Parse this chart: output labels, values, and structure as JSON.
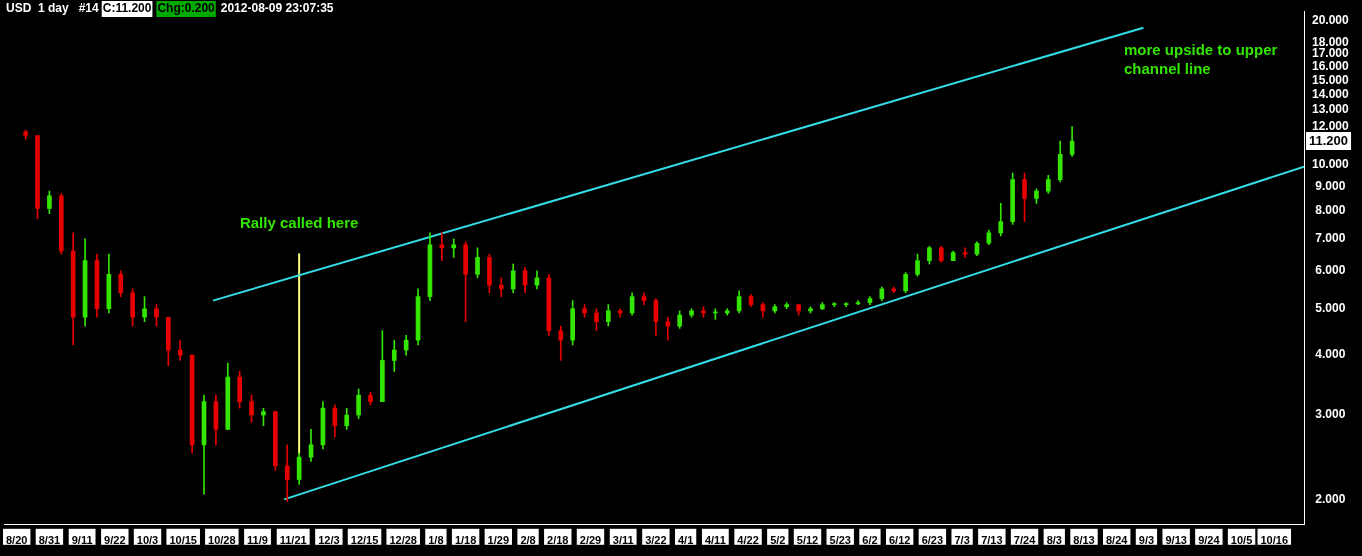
{
  "chart_data": {
    "type": "candlestick",
    "title": "USD  1 day   #14",
    "annotations": [
      "C:11.200",
      "Chg:0.200",
      "2012-08-09 23:07:35",
      "11.200",
      "Rally called here",
      "more upside to upper channel line"
    ],
    "x": [
      "2011-08-23",
      "2011-08-27",
      "2011-08-31",
      "2011-09-04",
      "2011-09-08",
      "2011-09-12",
      "2011-09-16",
      "2011-09-20",
      "2011-09-24",
      "2011-09-28",
      "2011-10-02",
      "2011-10-06",
      "2011-10-10",
      "2011-10-14",
      "2011-10-18",
      "2011-10-22",
      "2011-10-26",
      "2011-10-30",
      "2011-11-03",
      "2011-11-07",
      "2011-11-11",
      "2011-11-15",
      "2011-11-19",
      "2011-11-23",
      "2011-11-27",
      "2011-12-01",
      "2011-12-05",
      "2011-12-09",
      "2011-12-13",
      "2011-12-17",
      "2011-12-21",
      "2011-12-25",
      "2011-12-29",
      "2012-01-02",
      "2012-01-06",
      "2012-01-10",
      "2012-01-14",
      "2012-01-18",
      "2012-01-22",
      "2012-01-26",
      "2012-01-30",
      "2012-02-03",
      "2012-02-07",
      "2012-02-11",
      "2012-02-15",
      "2012-02-19",
      "2012-02-23",
      "2012-02-27",
      "2012-03-02",
      "2012-03-06",
      "2012-03-10",
      "2012-03-14",
      "2012-03-18",
      "2012-03-22",
      "2012-03-26",
      "2012-03-30",
      "2012-04-03",
      "2012-04-07",
      "2012-04-11",
      "2012-04-15",
      "2012-04-19",
      "2012-04-23",
      "2012-04-27",
      "2012-05-01",
      "2012-05-05",
      "2012-05-09",
      "2012-05-13",
      "2012-05-17",
      "2012-05-21",
      "2012-05-25",
      "2012-05-29",
      "2012-06-02",
      "2012-06-06",
      "2012-06-10",
      "2012-06-14",
      "2012-06-18",
      "2012-06-22",
      "2012-06-26",
      "2012-06-30",
      "2012-07-04",
      "2012-07-08",
      "2012-07-12",
      "2012-07-16",
      "2012-07-20",
      "2012-07-24",
      "2012-07-28",
      "2012-08-01",
      "2012-08-05",
      "2012-08-09"
    ],
    "ohlc": [
      [
        11.7,
        11.8,
        11.3,
        11.5
      ],
      [
        11.5,
        11.5,
        7.7,
        8.1
      ],
      [
        8.1,
        8.8,
        7.9,
        8.6
      ],
      [
        8.6,
        8.7,
        6.5,
        6.6
      ],
      [
        6.6,
        7.2,
        4.2,
        4.8
      ],
      [
        4.8,
        7.0,
        4.6,
        6.3
      ],
      [
        6.3,
        6.5,
        4.8,
        5.0
      ],
      [
        5.0,
        6.5,
        4.9,
        5.9
      ],
      [
        5.9,
        6.0,
        5.3,
        5.4
      ],
      [
        5.4,
        5.5,
        4.6,
        4.8
      ],
      [
        4.8,
        5.3,
        4.7,
        5.0
      ],
      [
        5.0,
        5.1,
        4.6,
        4.8
      ],
      [
        4.8,
        4.8,
        3.8,
        4.1
      ],
      [
        4.1,
        4.3,
        3.9,
        4.0
      ],
      [
        4.0,
        4.0,
        2.5,
        2.6
      ],
      [
        2.6,
        3.3,
        2.05,
        3.2
      ],
      [
        3.2,
        3.3,
        2.6,
        2.8
      ],
      [
        2.8,
        3.85,
        2.8,
        3.6
      ],
      [
        3.6,
        3.7,
        3.1,
        3.2
      ],
      [
        3.2,
        3.3,
        2.9,
        3.0
      ],
      [
        3.0,
        3.1,
        2.85,
        3.05
      ],
      [
        3.05,
        3.05,
        2.3,
        2.35
      ],
      [
        2.35,
        2.6,
        1.98,
        2.2
      ],
      [
        2.2,
        2.5,
        2.15,
        2.45
      ],
      [
        2.45,
        2.8,
        2.4,
        2.6
      ],
      [
        2.6,
        3.2,
        2.55,
        3.1
      ],
      [
        3.1,
        3.15,
        2.7,
        2.85
      ],
      [
        2.85,
        3.1,
        2.8,
        3.0
      ],
      [
        3.0,
        3.4,
        2.95,
        3.3
      ],
      [
        3.3,
        3.35,
        3.15,
        3.2
      ],
      [
        3.2,
        4.5,
        3.2,
        3.9
      ],
      [
        3.9,
        4.3,
        3.7,
        4.1
      ],
      [
        4.1,
        4.4,
        4.0,
        4.3
      ],
      [
        4.3,
        5.5,
        4.2,
        5.3
      ],
      [
        5.3,
        7.2,
        5.2,
        6.8
      ],
      [
        6.8,
        7.2,
        6.3,
        6.7
      ],
      [
        6.7,
        7.0,
        6.4,
        6.8
      ],
      [
        6.8,
        6.9,
        4.7,
        5.9
      ],
      [
        5.9,
        6.7,
        5.8,
        6.4
      ],
      [
        6.4,
        6.5,
        5.4,
        5.6
      ],
      [
        5.6,
        5.8,
        5.3,
        5.5
      ],
      [
        5.5,
        6.2,
        5.4,
        6.0
      ],
      [
        6.0,
        6.1,
        5.4,
        5.6
      ],
      [
        5.6,
        6.0,
        5.5,
        5.8
      ],
      [
        5.8,
        5.9,
        4.4,
        4.5
      ],
      [
        4.5,
        4.6,
        3.9,
        4.3
      ],
      [
        4.3,
        5.2,
        4.2,
        5.0
      ],
      [
        5.0,
        5.1,
        4.8,
        4.9
      ],
      [
        4.9,
        5.0,
        4.5,
        4.7
      ],
      [
        4.7,
        5.1,
        4.6,
        4.95
      ],
      [
        4.95,
        5.0,
        4.8,
        4.9
      ],
      [
        4.9,
        5.4,
        4.85,
        5.3
      ],
      [
        5.3,
        5.4,
        5.1,
        5.2
      ],
      [
        5.2,
        5.25,
        4.4,
        4.7
      ],
      [
        4.7,
        4.8,
        4.3,
        4.6
      ],
      [
        4.6,
        4.95,
        4.55,
        4.85
      ],
      [
        4.85,
        5.0,
        4.8,
        4.95
      ],
      [
        4.95,
        5.05,
        4.8,
        4.9
      ],
      [
        4.9,
        5.0,
        4.75,
        4.9
      ],
      [
        4.9,
        5.0,
        4.85,
        4.95
      ],
      [
        4.95,
        5.45,
        4.9,
        5.3
      ],
      [
        5.3,
        5.35,
        5.05,
        5.1
      ],
      [
        5.1,
        5.15,
        4.8,
        4.95
      ],
      [
        4.95,
        5.1,
        4.9,
        5.05
      ],
      [
        5.05,
        5.15,
        5.0,
        5.1
      ],
      [
        5.1,
        5.1,
        4.85,
        4.95
      ],
      [
        4.95,
        5.05,
        4.9,
        5.0
      ],
      [
        5.0,
        5.15,
        4.98,
        5.1
      ],
      [
        5.1,
        5.15,
        5.05,
        5.1
      ],
      [
        5.1,
        5.15,
        5.05,
        5.12
      ],
      [
        5.12,
        5.2,
        5.1,
        5.15
      ],
      [
        5.15,
        5.3,
        5.1,
        5.25
      ],
      [
        5.25,
        5.55,
        5.2,
        5.5
      ],
      [
        5.5,
        5.55,
        5.4,
        5.45
      ],
      [
        5.45,
        5.95,
        5.4,
        5.9
      ],
      [
        5.9,
        6.5,
        5.85,
        6.3
      ],
      [
        6.3,
        6.75,
        6.2,
        6.7
      ],
      [
        6.7,
        6.75,
        6.25,
        6.3
      ],
      [
        6.3,
        6.6,
        6.3,
        6.55
      ],
      [
        6.55,
        6.7,
        6.4,
        6.5
      ],
      [
        6.5,
        6.9,
        6.45,
        6.85
      ],
      [
        6.85,
        7.3,
        6.8,
        7.2
      ],
      [
        7.2,
        8.3,
        7.1,
        7.6
      ],
      [
        7.6,
        9.6,
        7.5,
        9.3
      ],
      [
        9.3,
        9.6,
        7.6,
        8.5
      ],
      [
        8.5,
        8.9,
        8.3,
        8.8
      ],
      [
        8.8,
        9.5,
        8.7,
        9.3
      ],
      [
        9.3,
        11.2,
        9.2,
        10.5
      ],
      [
        10.5,
        12.0,
        10.4,
        11.2
      ]
    ],
    "colors": [
      "#e60000",
      "#e60000",
      "#33e600",
      "#e60000",
      "#e60000",
      "#33e600",
      "#e60000",
      "#33e600",
      "#e60000",
      "#e60000",
      "#33e600",
      "#e60000",
      "#e60000",
      "#e60000",
      "#e60000",
      "#33e600",
      "#e60000",
      "#33e600",
      "#e60000",
      "#e60000",
      "#33e600",
      "#e60000",
      "#e60000",
      "#33e600",
      "#33e600",
      "#33e600",
      "#e60000",
      "#33e600",
      "#33e600",
      "#e60000",
      "#33e600",
      "#33e600",
      "#33e600",
      "#33e600",
      "#33e600",
      "#e60000",
      "#33e600",
      "#e60000",
      "#33e600",
      "#e60000",
      "#e60000",
      "#33e600",
      "#e60000",
      "#33e600",
      "#e60000",
      "#e60000",
      "#33e600",
      "#e60000",
      "#e60000",
      "#33e600",
      "#e60000",
      "#33e600",
      "#e60000",
      "#e60000",
      "#e60000",
      "#33e600",
      "#33e600",
      "#e60000",
      "#33e600",
      "#33e600",
      "#33e600",
      "#e60000",
      "#e60000",
      "#33e600",
      "#33e600",
      "#e60000",
      "#33e600",
      "#33e600",
      "#33e600",
      "#33e600",
      "#33e600",
      "#33e600",
      "#33e600",
      "#e60000",
      "#33e600",
      "#33e600",
      "#33e600",
      "#e60000",
      "#33e600",
      "#e60000",
      "#33e600",
      "#33e600",
      "#33e600",
      "#33e600",
      "#e60000",
      "#33e600",
      "#33e600",
      "#33e600",
      "#33e600"
    ],
    "series": [
      {
        "type": "line",
        "color": "#33dde6",
        "x": [
          "2011-10-25",
          "2012-09-02"
        ],
        "values": [
          5.2,
          19.3
        ]
      },
      {
        "type": "line",
        "color": "#33dde6",
        "x": [
          "2011-11-18",
          "2012-10-26"
        ],
        "values": [
          2.0,
          9.9
        ]
      },
      {
        "type": "line",
        "color": "#ffff80",
        "x": [
          "2011-11-23",
          "2011-11-23"
        ],
        "values": [
          6.5,
          2.5
        ]
      }
    ],
    "log": true,
    "grid": false,
    "legend": false,
    "marker": "none",
    "line_style": "solid",
    "xlim": [
      "2011-08-16",
      "2012-10-26"
    ],
    "xticks": [
      {
        "value": "2011-08-20",
        "label": "8/20"
      },
      {
        "value": "2011-08-31",
        "label": "8/31"
      },
      {
        "value": "2011-09-11",
        "label": "9/11"
      },
      {
        "value": "2011-09-22",
        "label": "9/22"
      },
      {
        "value": "2011-10-03",
        "label": "10/3"
      },
      {
        "value": "2011-10-15",
        "label": "10/15"
      },
      {
        "value": "2011-10-28",
        "label": "10/28"
      },
      {
        "value": "2011-11-09",
        "label": "11/9"
      },
      {
        "value": "2011-11-21",
        "label": "11/21"
      },
      {
        "value": "2011-12-03",
        "label": "12/3"
      },
      {
        "value": "2011-12-15",
        "label": "12/15"
      },
      {
        "value": "2011-12-28",
        "label": "12/28"
      },
      {
        "value": "2012-01-08",
        "label": "1/8"
      },
      {
        "value": "2012-01-18",
        "label": "1/18"
      },
      {
        "value": "2012-01-29",
        "label": "1/29"
      },
      {
        "value": "2012-02-08",
        "label": "2/8"
      },
      {
        "value": "2012-02-18",
        "label": "2/18"
      },
      {
        "value": "2012-02-29",
        "label": "2/29"
      },
      {
        "value": "2012-03-11",
        "label": "3/11"
      },
      {
        "value": "2012-03-22",
        "label": "3/22"
      },
      {
        "value": "2012-04-01",
        "label": "4/1"
      },
      {
        "value": "2012-04-11",
        "label": "4/11"
      },
      {
        "value": "2012-04-22",
        "label": "4/22"
      },
      {
        "value": "2012-05-02",
        "label": "5/2"
      },
      {
        "value": "2012-05-12",
        "label": "5/12"
      },
      {
        "value": "2012-05-23",
        "label": "5/23"
      },
      {
        "value": "2012-06-02",
        "label": "6/2"
      },
      {
        "value": "2012-06-12",
        "label": "6/12"
      },
      {
        "value": "2012-06-23",
        "label": "6/23"
      },
      {
        "value": "2012-07-03",
        "label": "7/3"
      },
      {
        "value": "2012-07-13",
        "label": "7/13"
      },
      {
        "value": "2012-07-24",
        "label": "7/24"
      },
      {
        "value": "2012-08-03",
        "label": "8/3"
      },
      {
        "value": "2012-08-13",
        "label": "8/13"
      },
      {
        "value": "2012-08-24",
        "label": "8/24"
      },
      {
        "value": "2012-09-03",
        "label": "9/3"
      },
      {
        "value": "2012-09-13",
        "label": "9/13"
      },
      {
        "value": "2012-09-24",
        "label": "9/24"
      },
      {
        "value": "2012-10-05",
        "label": "10/5"
      },
      {
        "value": "2012-10-16",
        "label": "10/16"
      }
    ],
    "ylim": [
      1.77,
      20.9
    ],
    "yticks": [
      {
        "value": 2,
        "label": "2.000"
      },
      {
        "value": 3,
        "label": "3.000"
      },
      {
        "value": 4,
        "label": "4.000"
      },
      {
        "value": 5,
        "label": "5.000"
      },
      {
        "value": 6,
        "label": "6.000"
      },
      {
        "value": 7,
        "label": "7.000"
      },
      {
        "value": 8,
        "label": "8.000"
      },
      {
        "value": 9,
        "label": "9.000"
      },
      {
        "value": 10,
        "label": "10.000"
      },
      {
        "value": 12,
        "label": "12.000"
      },
      {
        "value": 13,
        "label": "13.000"
      },
      {
        "value": 14,
        "label": "14.000"
      },
      {
        "value": 15,
        "label": "15.000"
      },
      {
        "value": 16,
        "label": "16.000"
      },
      {
        "value": 17,
        "label": "17.000"
      },
      {
        "value": 18,
        "label": "18.000"
      },
      {
        "value": 20,
        "label": "20.000"
      }
    ]
  }
}
